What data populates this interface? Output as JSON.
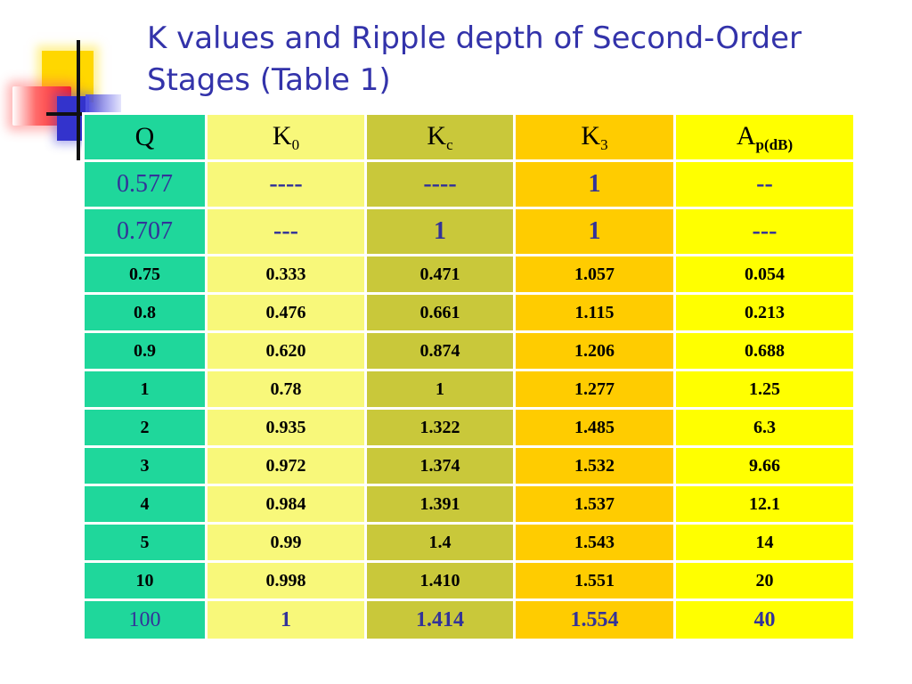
{
  "slide": {
    "title": "K values and Ripple depth of Second-Order Stages (Table 1)"
  },
  "colors": {
    "q_column": "#1fd79b",
    "k0_column": "#f8f87a",
    "kc_column": "#c9c83a",
    "k3_column": "#ffcc00",
    "ap_column": "#ffff00",
    "title_text": "#3333aa",
    "highlight_text": "#333399"
  },
  "table": {
    "headers": {
      "q": "Q",
      "k0_base": "K",
      "k0_sub": "0",
      "kc_base": "K",
      "kc_sub": "c",
      "k3_base": "K",
      "k3_sub": "3",
      "ap_base": "A",
      "ap_sub": "p(dB)"
    },
    "rows": [
      [
        "0.577",
        "----",
        "----",
        "1",
        "--"
      ],
      [
        "0.707",
        "---",
        "1",
        "1",
        "---"
      ],
      [
        "0.75",
        "0.333",
        "0.471",
        "1.057",
        "0.054"
      ],
      [
        "0.8",
        "0.476",
        "0.661",
        "1.115",
        "0.213"
      ],
      [
        "0.9",
        "0.620",
        "0.874",
        "1.206",
        "0.688"
      ],
      [
        "1",
        "0.78",
        "1",
        "1.277",
        "1.25"
      ],
      [
        "2",
        "0.935",
        "1.322",
        "1.485",
        "6.3"
      ],
      [
        "3",
        "0.972",
        "1.374",
        "1.532",
        "9.66"
      ],
      [
        "4",
        "0.984",
        "1.391",
        "1.537",
        "12.1"
      ],
      [
        "5",
        "0.99",
        "1.4",
        "1.543",
        "14"
      ],
      [
        "10",
        "0.998",
        "1.410",
        "1.551",
        "20"
      ],
      [
        "100",
        "1",
        "1.414",
        "1.554",
        "40"
      ]
    ]
  }
}
